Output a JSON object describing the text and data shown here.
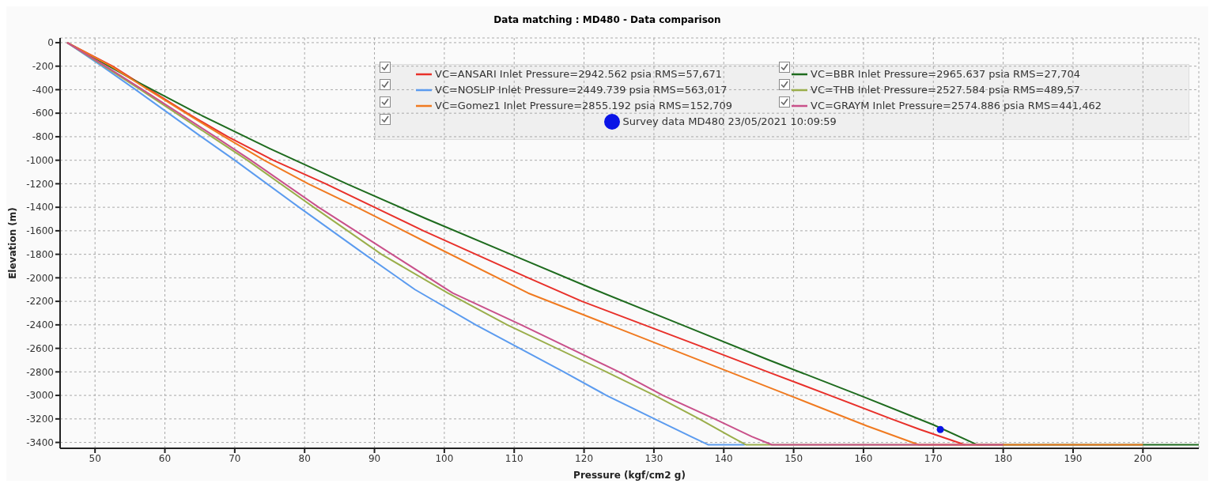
{
  "chart_data": {
    "type": "line",
    "title": "Data matching : MD480 - Data comparison",
    "xlabel": "Pressure (kgf/cm2 g)",
    "ylabel": "Elevation (m)",
    "xlim": [
      45,
      208
    ],
    "xticks": [
      50,
      60,
      70,
      80,
      90,
      100,
      110,
      120,
      130,
      140,
      150,
      160,
      170,
      180,
      190,
      200
    ],
    "ylim": [
      -3450,
      40
    ],
    "yticks": [
      0,
      -200,
      -400,
      -600,
      -800,
      -1000,
      -1200,
      -1400,
      -1600,
      -1800,
      -2000,
      -2200,
      -2400,
      -2600,
      -2800,
      -3000,
      -3200,
      -3400
    ],
    "grid": true,
    "legend": "top right",
    "marker": "none",
    "line_style": "solid",
    "series": [
      {
        "name": "VC=ANSARI Inlet Pressure=2942.562 psia RMS=57,671",
        "color": "#e8302a",
        "x": [
          46,
          52.5,
          57.8,
          63.2,
          69,
          75.5,
          83,
          90,
          97,
          104.5,
          112,
          119.7,
          128.6,
          137.5,
          146.3,
          155.2,
          164,
          168.1,
          174.5
        ],
        "values": [
          0,
          -200,
          -400,
          -600,
          -800,
          -1000,
          -1200,
          -1400,
          -1600,
          -1800,
          -2000,
          -2200,
          -2400,
          -2600,
          -2800,
          -3000,
          -3200,
          -3290,
          -3420
        ]
      },
      {
        "name": "VC=BBR Inlet Pressure=2965.637 psia RMS=27,704",
        "color": "#1e6b1e",
        "x": [
          46,
          55,
          64.6,
          75,
          86,
          97.5,
          109.5,
          121.5,
          134,
          146.5,
          159.5,
          170,
          176.3,
          208
        ],
        "values": [
          0,
          -300,
          -600,
          -900,
          -1200,
          -1500,
          -1800,
          -2100,
          -2400,
          -2700,
          -3000,
          -3250,
          -3420,
          -3420
        ]
      },
      {
        "name": "VC=NOSLIP Inlet Pressure=2449.739 psia RMS=563,017",
        "color": "#5b9bef",
        "x": [
          46,
          51,
          55.8,
          60.5,
          65.2,
          70,
          79.2,
          88.6,
          95.8,
          104.5,
          117.1,
          123.2,
          130.1,
          135.3,
          137.8,
          143
        ],
        "values": [
          0,
          -200,
          -400,
          -600,
          -800,
          -1000,
          -1400,
          -1800,
          -2100,
          -2400,
          -2800,
          -3000,
          -3200,
          -3350,
          -3420,
          -3420
        ]
      },
      {
        "name": "VC=THB Inlet Pressure=2527.584 psia RMS=489,57",
        "color": "#9aae4a",
        "x": [
          46,
          51.3,
          56.5,
          61.6,
          66.7,
          71.8,
          81.3,
          91,
          100.5,
          109,
          123.2,
          130.1,
          136.5,
          141,
          143.2,
          177
        ],
        "values": [
          0,
          -200,
          -400,
          -600,
          -800,
          -1000,
          -1400,
          -1800,
          -2130,
          -2400,
          -2800,
          -3000,
          -3200,
          -3350,
          -3420,
          -3420
        ]
      },
      {
        "name": "VC=Gomez1 Inlet Pressure=2855.192 psia RMS=152,709",
        "color": "#f07a20",
        "x": [
          46,
          52.3,
          57.6,
          63,
          68.5,
          74.2,
          80.5,
          87.5,
          97.5,
          112,
          123.6,
          140.8,
          149.4,
          160.5,
          167.9,
          200
        ],
        "values": [
          0,
          -200,
          -400,
          -600,
          -800,
          -1000,
          -1200,
          -1400,
          -1700,
          -2130,
          -2400,
          -2800,
          -3000,
          -3260,
          -3420,
          -3420
        ]
      },
      {
        "name": "VC=GRAYM Inlet Pressure=2574.886 psia RMS=441,462",
        "color": "#c9508a",
        "x": [
          46,
          51.5,
          56.8,
          62,
          67.2,
          72.3,
          82,
          92.5,
          101.2,
          111,
          125,
          131.3,
          138.7,
          144,
          146.9,
          180
        ],
        "values": [
          0,
          -200,
          -400,
          -600,
          -800,
          -1000,
          -1400,
          -1800,
          -2130,
          -2400,
          -2800,
          -3000,
          -3200,
          -3350,
          -3420,
          -3420
        ]
      },
      {
        "name": "Survey data MD480 23/05/2021 10:09:59",
        "type": "scatter",
        "marker": "circle",
        "color": "#0a14e6",
        "x": [
          171
        ],
        "values": [
          -3290
        ]
      }
    ]
  }
}
